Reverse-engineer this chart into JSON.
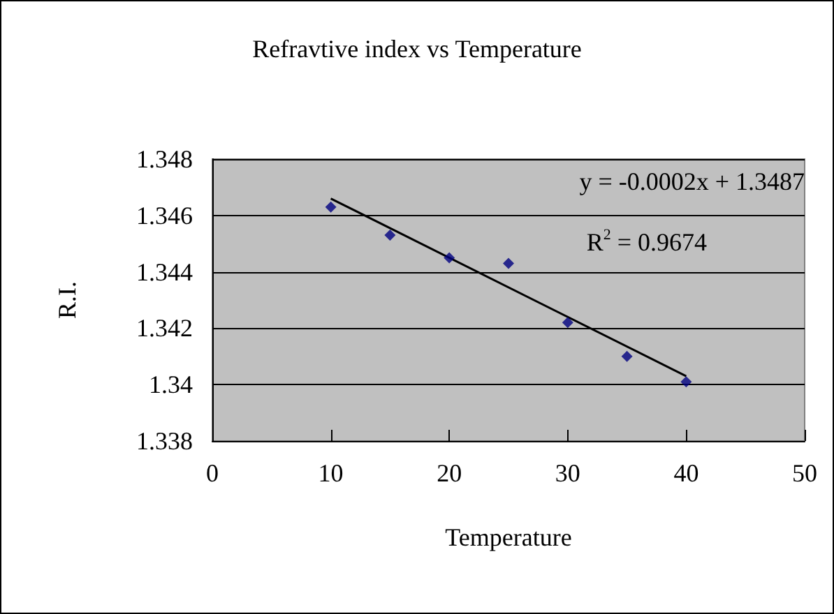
{
  "chart_data": {
    "type": "scatter",
    "title": "Refravtive index vs Temperature",
    "xlabel": "Temperature",
    "ylabel": "R.I.",
    "series": [
      {
        "color": "#000080",
        "marker": "diamond",
        "x": [
          10,
          15,
          20,
          25,
          30,
          35,
          40
        ],
        "values": [
          1.3463,
          1.3453,
          1.3445,
          1.3443,
          1.3422,
          1.341,
          1.3401
        ]
      },
      {
        "type": "line",
        "color": "#000000",
        "marker": "none",
        "line_style": "solid",
        "x": [
          10,
          40
        ],
        "values": [
          1.3466,
          1.3403
        ]
      }
    ],
    "xlim": [
      0,
      50
    ],
    "xticks": [
      0,
      10,
      20,
      30,
      40,
      50
    ],
    "ylim": [
      1.338,
      1.348
    ],
    "yticks": [
      1.338,
      1.34,
      1.342,
      1.344,
      1.346,
      1.348
    ],
    "grid": "y",
    "annotations": [
      "y = -0.0002x + 1.3487",
      "R$^{2}$ = 0.9674"
    ]
  }
}
